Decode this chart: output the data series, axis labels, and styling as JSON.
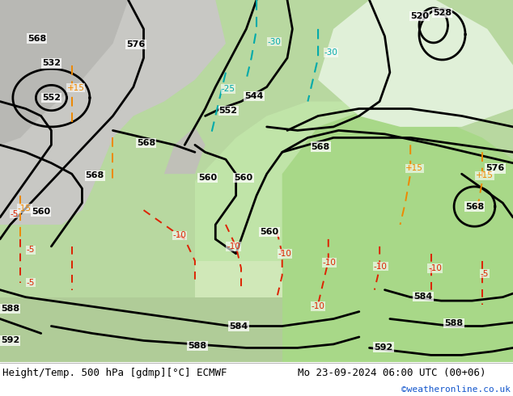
{
  "title_left": "Height/Temp. 500 hPa [gdmp][°C] ECMWF",
  "title_right": "Mo 23-09-2024 06:00 UTC (00+06)",
  "credit": "©weatheronline.co.uk",
  "bg_color": "#ffffff",
  "fig_width": 6.34,
  "fig_height": 4.9,
  "dpi": 100,
  "title_fontsize": 9.0,
  "credit_fontsize": 8.0,
  "credit_color": "#1155cc",
  "col_black": "#000000",
  "col_green_light": "#c8e8b0",
  "col_green_mid": "#a8d890",
  "col_gray": "#c8c8c8",
  "col_gray_dark": "#b0b0b0",
  "col_white": "#f0f0f0",
  "col_cyan": "#00aaaa",
  "col_orange": "#ee8800",
  "col_red": "#dd2200"
}
